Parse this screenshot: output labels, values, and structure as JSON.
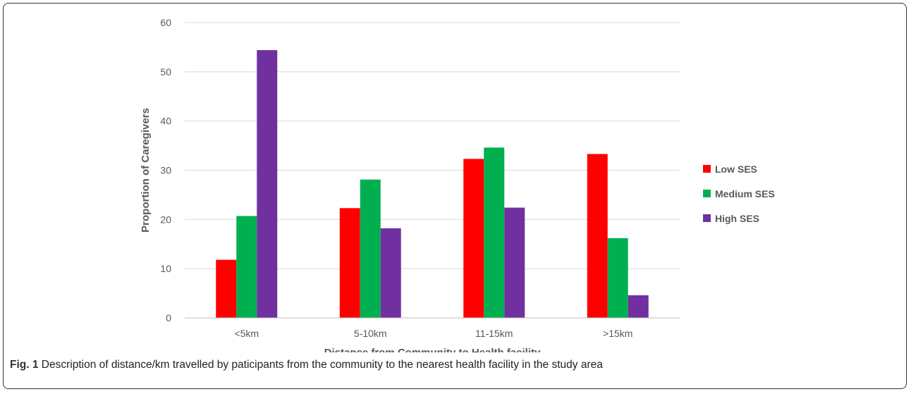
{
  "chart_data": {
    "type": "bar",
    "categories": [
      "<5km",
      "5-10km",
      "11-15km",
      ">15km"
    ],
    "series": [
      {
        "name": "Low SES",
        "color": "#ff0000",
        "values": [
          11.8,
          22.3,
          32.3,
          33.3
        ]
      },
      {
        "name": "Medium SES",
        "color": "#00b050",
        "values": [
          20.7,
          28.1,
          34.6,
          16.2
        ]
      },
      {
        "name": "High SES",
        "color": "#7030a0",
        "values": [
          54.4,
          18.2,
          22.4,
          4.6
        ]
      }
    ],
    "xlabel": "Distance from Community to Health facility",
    "ylabel": "Proportion of Caregivers",
    "ylim": [
      0,
      60
    ],
    "yticks": [
      0,
      10,
      20,
      30,
      40,
      50,
      60
    ],
    "grid": true,
    "legend": "right"
  },
  "caption": {
    "label": "Fig. 1",
    "text": " Description of distance/km travelled by paticipants from the community to the nearest health facility in the study area"
  }
}
